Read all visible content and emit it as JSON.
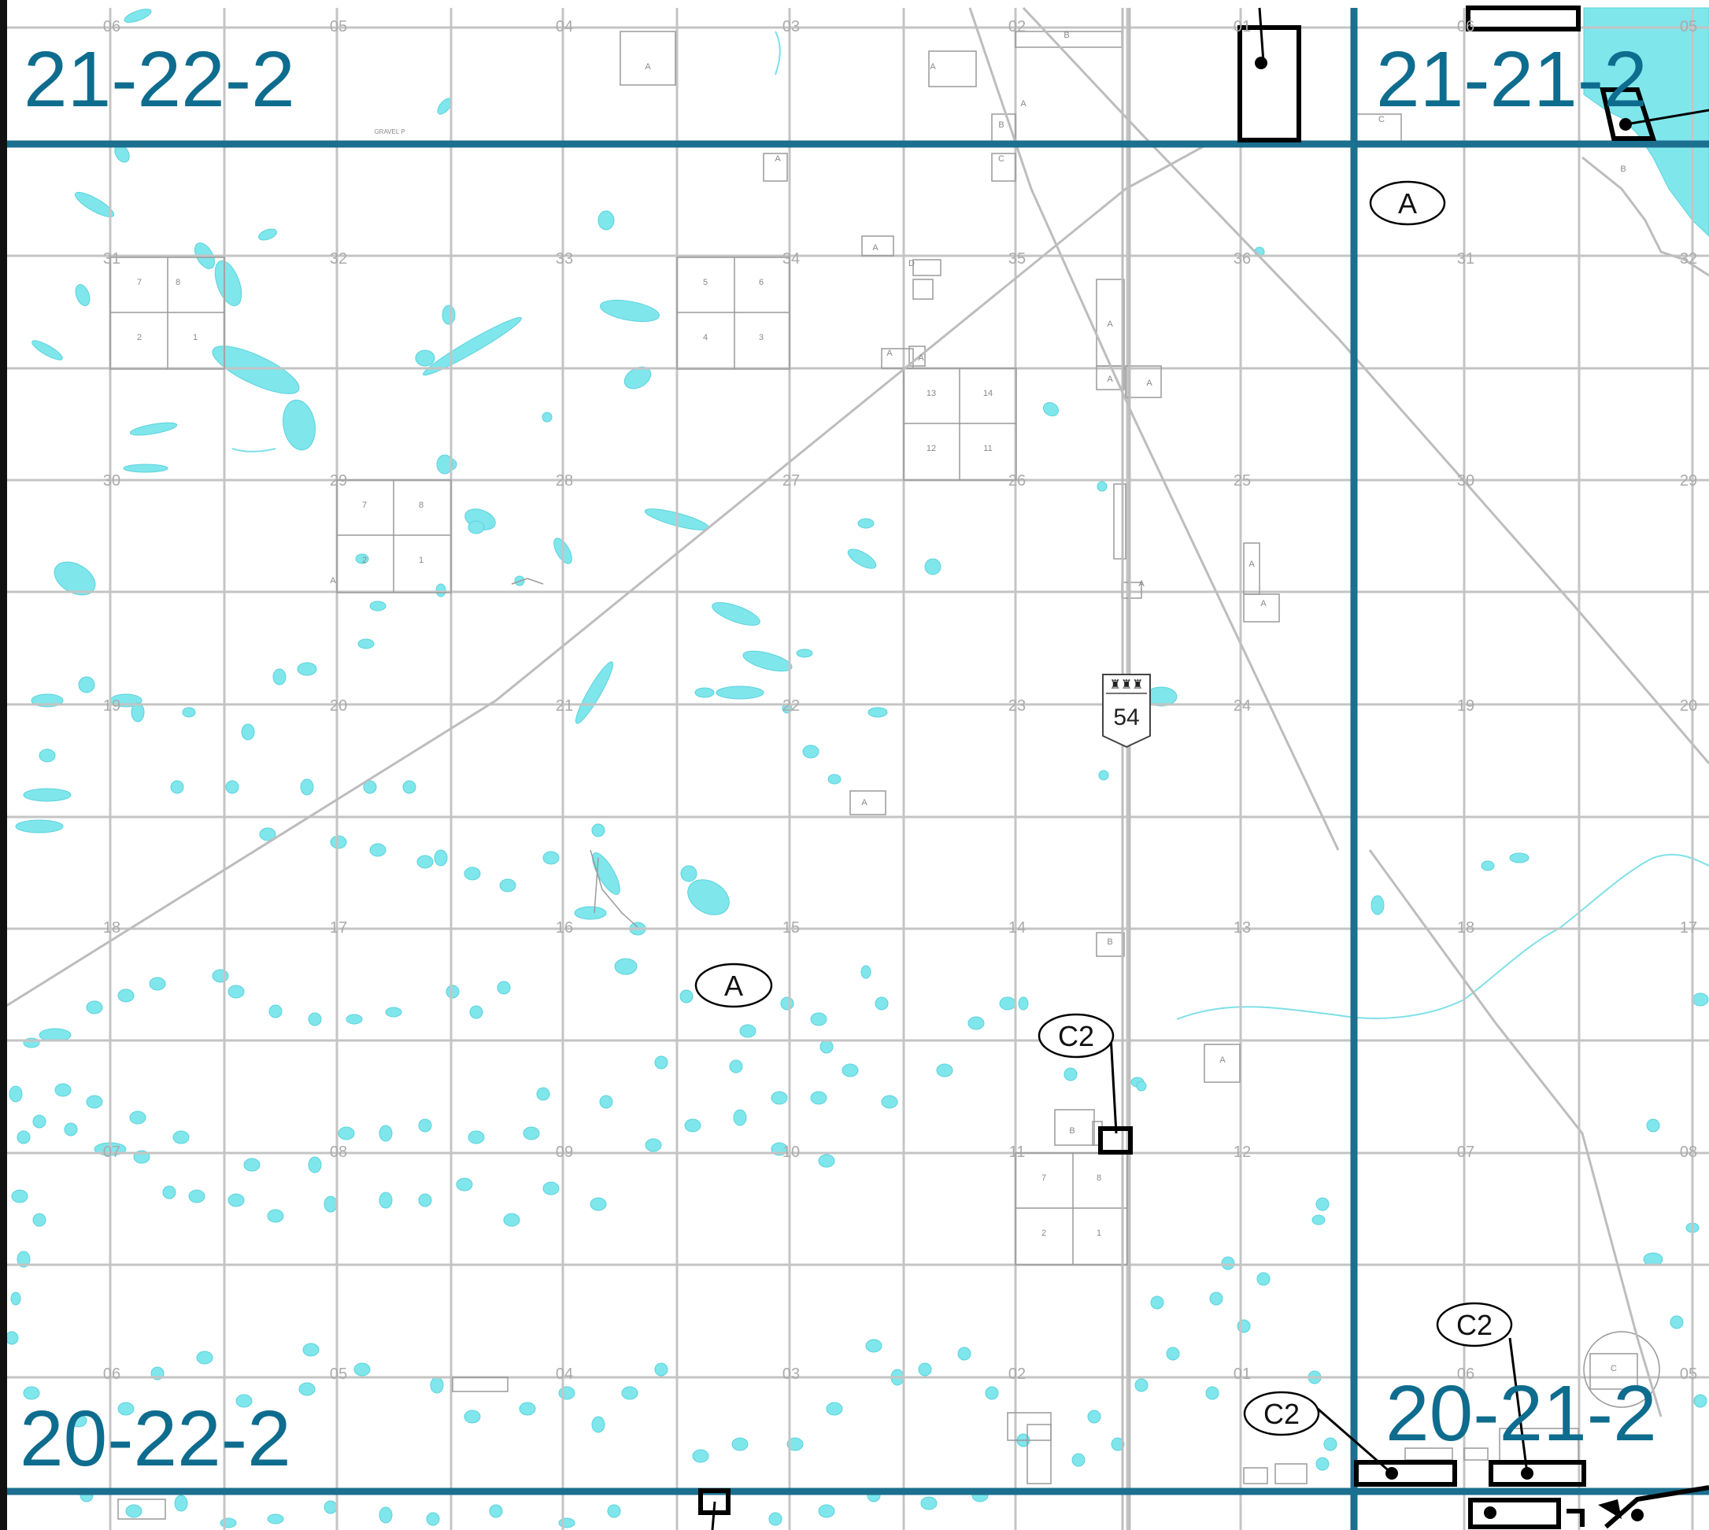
{
  "map": {
    "township_labels": [
      "21-22-2",
      "21-21-2",
      "20-22-2",
      "20-21-2"
    ],
    "zone_labels": [
      "A",
      "A",
      "C2",
      "C2",
      "C2"
    ],
    "highway_shield": {
      "number": "54"
    },
    "section_numbers": [
      "06",
      "05",
      "04",
      "03",
      "02",
      "01",
      "06",
      "05",
      "31",
      "32",
      "33",
      "34",
      "35",
      "36",
      "31",
      "32",
      "30",
      "29",
      "28",
      "27",
      "26",
      "25",
      "30",
      "29",
      "19",
      "20",
      "21",
      "22",
      "23",
      "24",
      "19",
      "20",
      "18",
      "17",
      "16",
      "15",
      "14",
      "13",
      "18",
      "17",
      "07",
      "08",
      "09",
      "10",
      "11",
      "12",
      "07",
      "08",
      "06",
      "05",
      "04",
      "03",
      "02",
      "01",
      "06",
      "05"
    ],
    "lot_labels": [
      "7",
      "8",
      "2",
      "1",
      "5",
      "6",
      "4",
      "3",
      "13",
      "14",
      "12",
      "11",
      "7",
      "8",
      "2",
      "1",
      "7",
      "8",
      "2",
      "1"
    ],
    "parcel_letters": [
      "A",
      "A",
      "B",
      "A",
      "B",
      "C",
      "A",
      "A",
      "D",
      "A",
      "A",
      "A",
      "A",
      "A",
      "A",
      "A",
      "A",
      "A",
      "A",
      "B",
      "C",
      "A",
      "B",
      "C",
      "B"
    ],
    "misc_text": [
      "GRAVEL P"
    ],
    "colors": {
      "township_line": "#1b6f8f",
      "section_grid": "#c4c4c4",
      "water": "#7fe6ec",
      "facility": "#000000"
    }
  }
}
